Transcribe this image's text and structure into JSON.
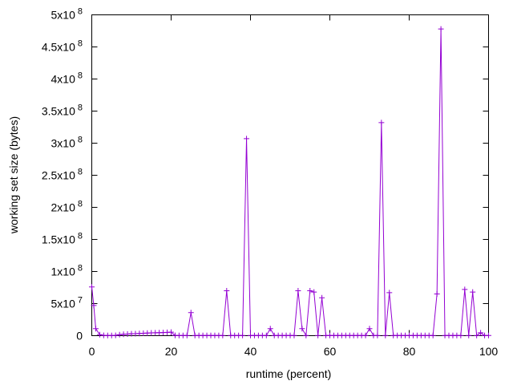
{
  "chart_data": {
    "type": "line",
    "title": "",
    "xlabel": "runtime (percent)",
    "ylabel": "working set size (bytes)",
    "xlim": [
      0,
      100
    ],
    "ylim": [
      0,
      500000000
    ],
    "grid": false,
    "legend": "none",
    "x_ticks": [
      0,
      20,
      40,
      60,
      80,
      100
    ],
    "x_tick_labels": [
      "0",
      "20",
      "40",
      "60",
      "80",
      "100"
    ],
    "y_ticks": [
      0,
      50000000,
      100000000,
      150000000,
      200000000,
      250000000,
      300000000,
      350000000,
      400000000,
      450000000,
      500000000
    ],
    "y_tick_labels": [
      {
        "mant": "0",
        "exp": ""
      },
      {
        "mant": "5x10",
        "exp": "7"
      },
      {
        "mant": "1x10",
        "exp": "8"
      },
      {
        "mant": "1.5x10",
        "exp": "8"
      },
      {
        "mant": "2x10",
        "exp": "8"
      },
      {
        "mant": "2.5x10",
        "exp": "8"
      },
      {
        "mant": "3x10",
        "exp": "8"
      },
      {
        "mant": "3.5x10",
        "exp": "8"
      },
      {
        "mant": "4x10",
        "exp": "8"
      },
      {
        "mant": "4.5x10",
        "exp": "8"
      },
      {
        "mant": "5x10",
        "exp": "8"
      }
    ],
    "series": [
      {
        "color": "#9400d3",
        "marker": "plus",
        "points": [
          [
            0,
            76000000
          ],
          [
            0.5,
            47000000
          ],
          [
            1,
            11000000
          ],
          [
            2,
            1500000
          ],
          [
            3,
            500000
          ],
          [
            4,
            300000
          ],
          [
            5,
            300000
          ],
          [
            6,
            500000
          ],
          [
            7,
            1500000
          ],
          [
            8,
            2200000
          ],
          [
            9,
            2500000
          ],
          [
            10,
            3000000
          ],
          [
            11,
            3200000
          ],
          [
            12,
            3500000
          ],
          [
            13,
            3800000
          ],
          [
            14,
            4000000
          ],
          [
            15,
            4300000
          ],
          [
            16,
            4500000
          ],
          [
            17,
            4700000
          ],
          [
            18,
            4900000
          ],
          [
            19,
            5200000
          ],
          [
            20,
            5500000
          ],
          [
            21,
            500000
          ],
          [
            22,
            300000
          ],
          [
            23,
            300000
          ],
          [
            24,
            300000
          ],
          [
            25,
            36000000
          ],
          [
            26,
            300000
          ],
          [
            27,
            300000
          ],
          [
            28,
            300000
          ],
          [
            29,
            300000
          ],
          [
            30,
            300000
          ],
          [
            31,
            300000
          ],
          [
            32,
            300000
          ],
          [
            33,
            300000
          ],
          [
            34,
            70000000
          ],
          [
            35,
            300000
          ],
          [
            36,
            300000
          ],
          [
            37,
            300000
          ],
          [
            38,
            300000
          ],
          [
            39,
            307000000
          ],
          [
            40,
            300000
          ],
          [
            41,
            300000
          ],
          [
            42,
            300000
          ],
          [
            43,
            300000
          ],
          [
            44,
            300000
          ],
          [
            45,
            11000000
          ],
          [
            46,
            300000
          ],
          [
            47,
            300000
          ],
          [
            48,
            300000
          ],
          [
            49,
            300000
          ],
          [
            50,
            300000
          ],
          [
            51,
            300000
          ],
          [
            52,
            70000000
          ],
          [
            53,
            11000000
          ],
          [
            54,
            300000
          ],
          [
            55,
            70000000
          ],
          [
            56,
            68000000
          ],
          [
            57,
            300000
          ],
          [
            58,
            59000000
          ],
          [
            59,
            300000
          ],
          [
            60,
            300000
          ],
          [
            61,
            300000
          ],
          [
            62,
            300000
          ],
          [
            63,
            300000
          ],
          [
            64,
            300000
          ],
          [
            65,
            300000
          ],
          [
            66,
            300000
          ],
          [
            67,
            300000
          ],
          [
            68,
            300000
          ],
          [
            69,
            300000
          ],
          [
            70,
            11000000
          ],
          [
            71,
            300000
          ],
          [
            72,
            300000
          ],
          [
            73,
            332000000
          ],
          [
            74,
            300000
          ],
          [
            75,
            67000000
          ],
          [
            76,
            300000
          ],
          [
            77,
            300000
          ],
          [
            78,
            300000
          ],
          [
            79,
            300000
          ],
          [
            80,
            300000
          ],
          [
            81,
            300000
          ],
          [
            82,
            300000
          ],
          [
            83,
            300000
          ],
          [
            84,
            300000
          ],
          [
            85,
            300000
          ],
          [
            86,
            300000
          ],
          [
            87,
            65000000
          ],
          [
            88,
            478000000
          ],
          [
            89,
            300000
          ],
          [
            90,
            300000
          ],
          [
            91,
            300000
          ],
          [
            92,
            300000
          ],
          [
            93,
            300000
          ],
          [
            94,
            72000000
          ],
          [
            95,
            300000
          ],
          [
            96,
            68000000
          ],
          [
            97,
            300000
          ],
          [
            98,
            4500000
          ],
          [
            99,
            300000
          ],
          [
            100,
            300000
          ]
        ]
      }
    ]
  }
}
